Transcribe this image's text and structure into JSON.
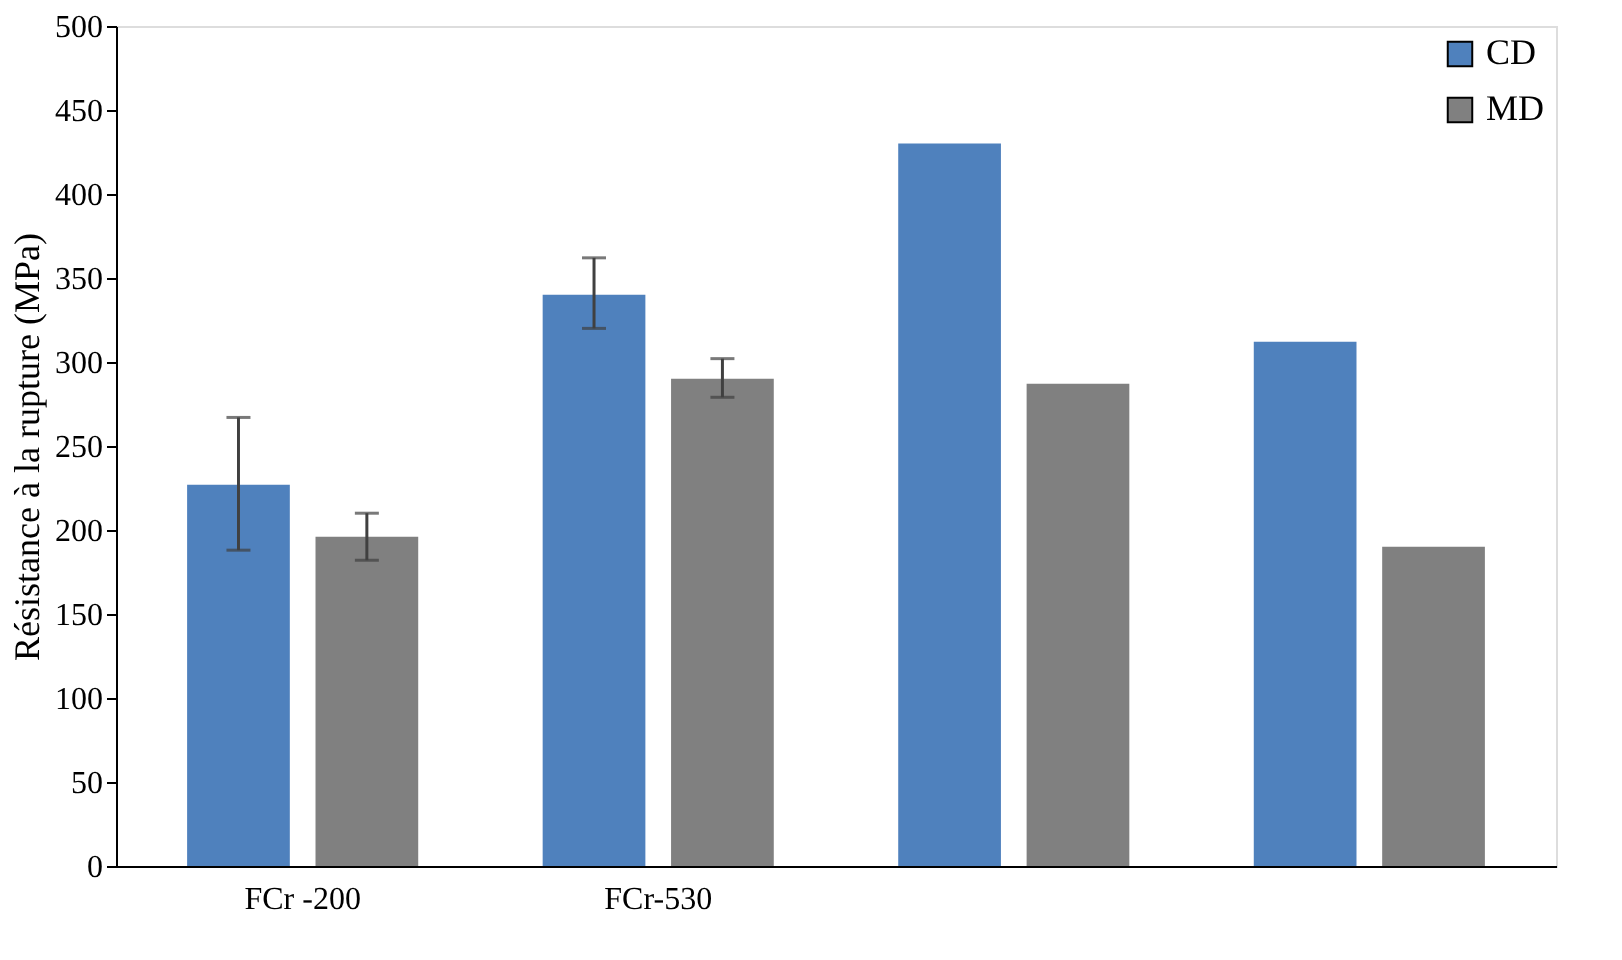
{
  "chart_data": {
    "type": "bar",
    "ylabel": "Résistance à la rupture (MPa)",
    "categories": [
      "FCr -200",
      "FCr-530",
      null,
      null
    ],
    "series": [
      {
        "name": "CD",
        "color": "#4f81bd",
        "values": [
          227,
          340,
          430,
          312
        ],
        "errors": [
          [
            188,
            267
          ],
          [
            320,
            362
          ],
          null,
          null
        ]
      },
      {
        "name": "MD",
        "color": "#808080",
        "values": [
          196,
          290,
          287,
          190
        ],
        "errors": [
          [
            182,
            210
          ],
          [
            279,
            302
          ],
          null,
          null
        ]
      }
    ],
    "ylim": [
      0,
      500
    ],
    "yticks": [
      0,
      50,
      100,
      150,
      200,
      250,
      300,
      350,
      400,
      450,
      500
    ],
    "grid": false,
    "legend": "top right"
  }
}
